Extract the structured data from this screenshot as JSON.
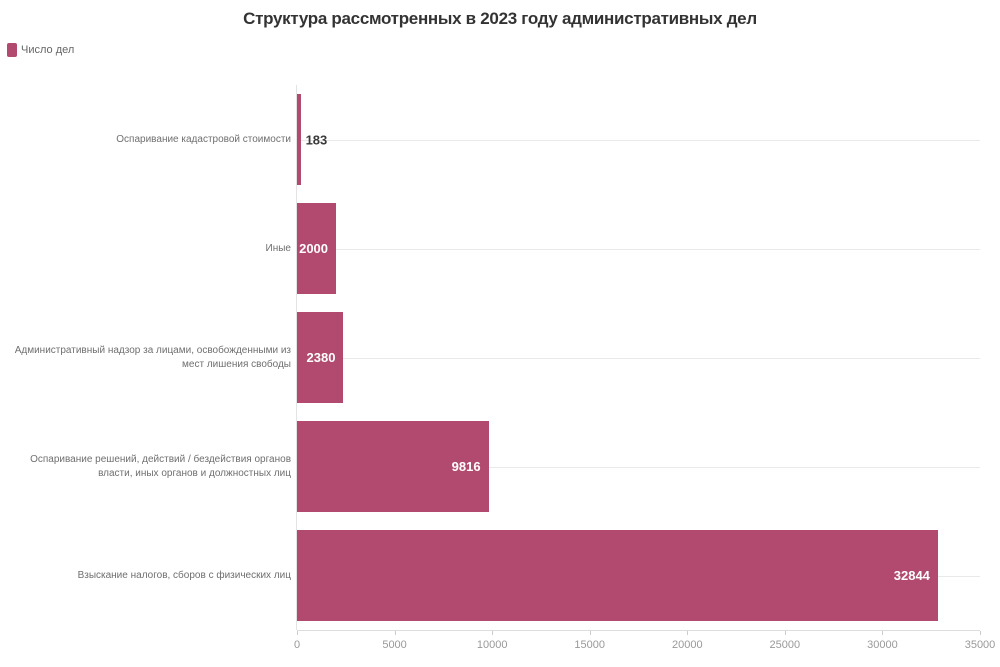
{
  "title": "Структура рассмотренных в 2023 году административных дел",
  "legend": {
    "label": "Число дел",
    "swatch_color": "#b14a6e"
  },
  "chart_data": {
    "type": "bar",
    "orientation": "horizontal",
    "title": "Структура рассмотренных в 2023 году административных дел",
    "series_name": "Число дел",
    "categories": [
      "Оспаривание кадастровой стоимости",
      "Иные",
      "Административный надзор за лицами, освобожденными из мест лишения свободы",
      "Оспаривание решений, действий / бездействия органов власти, иных органов и должностных лиц",
      "Взыскание налогов, сборов с физических лиц"
    ],
    "values": [
      183,
      2000,
      2380,
      9816,
      32844
    ],
    "value_labels_shown": true,
    "xlabel": "",
    "ylabel": "",
    "xlim": [
      0,
      35000
    ],
    "x_ticks": [
      0,
      5000,
      10000,
      15000,
      20000,
      25000,
      30000,
      35000
    ],
    "bar_color": "#b14a6e",
    "grid": "horizontal-category-lines",
    "legend_position": "top-left"
  }
}
